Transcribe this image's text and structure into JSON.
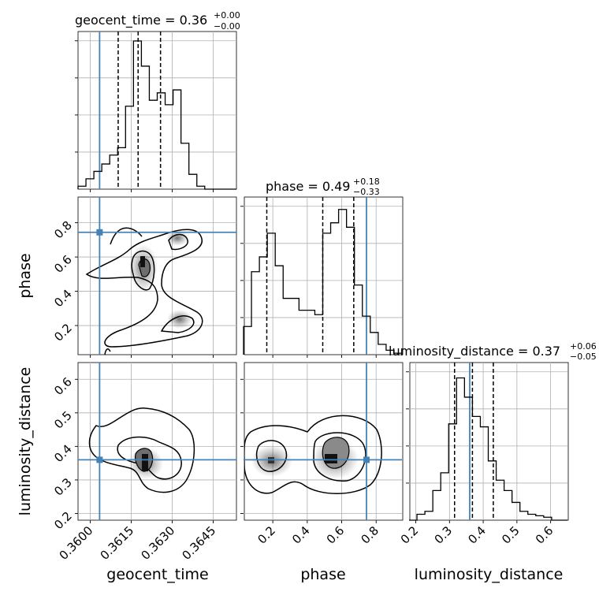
{
  "chart_data": {
    "type": "corner",
    "parameters": [
      "geocent_time",
      "phase",
      "luminosity_distance"
    ],
    "truths": {
      "geocent_time": 0.36034,
      "phase": 0.744,
      "luminosity_distance": 0.36
    },
    "ranges": {
      "geocent_time": [
        0.35955,
        0.36535
      ],
      "phase": [
        0.03,
        0.95
      ],
      "luminosity_distance": [
        0.18,
        0.65
      ]
    },
    "ticks": {
      "geocent_time": {
        "values": [
          0.36,
          0.3615,
          0.363,
          0.3645
        ],
        "labels": [
          "0.3600",
          "0.3615",
          "0.3630",
          "0.3645"
        ]
      },
      "phase": {
        "values": [
          0.2,
          0.4,
          0.6,
          0.8
        ],
        "labels": [
          "0.2",
          "0.4",
          "0.6",
          "0.8"
        ]
      },
      "luminosity_distance": {
        "values": [
          0.2,
          0.3,
          0.4,
          0.5,
          0.6
        ],
        "labels": [
          "0.2",
          "0.3",
          "0.4",
          "0.5",
          "0.6"
        ]
      }
    },
    "titles": {
      "geocent_time": {
        "name": "geocent_time",
        "median": "0.36",
        "plus": "+0.00",
        "minus": "−0.00"
      },
      "phase": {
        "name": "phase",
        "median": "0.49",
        "plus": "+0.18",
        "minus": "−0.33"
      },
      "luminosity_distance": {
        "name": "luminosity_distance",
        "median": "0.37",
        "plus": "+0.06",
        "minus": "−0.05"
      }
    },
    "quantiles": {
      "geocent_time": [
        0.36102,
        0.36175,
        0.36257
      ],
      "phase": [
        0.165,
        0.49,
        0.67
      ],
      "luminosity_distance": [
        0.315,
        0.368,
        0.43
      ]
    },
    "histograms": {
      "geocent_time": {
        "edges": [
          0.35955,
          0.35984,
          0.36013,
          0.36042,
          0.36071,
          0.361,
          0.36129,
          0.36158,
          0.36187,
          0.36216,
          0.36245,
          0.36274,
          0.36303,
          0.36332,
          0.36361,
          0.3639,
          0.36419,
          0.36448,
          0.36477,
          0.36506,
          0.36535
        ],
        "counts": [
          0.02,
          0.07,
          0.12,
          0.17,
          0.23,
          0.28,
          0.56,
          1.0,
          0.83,
          0.6,
          0.65,
          0.57,
          0.67,
          0.31,
          0.1,
          0.02,
          0.0,
          0.0,
          0.0,
          0.0
        ]
      },
      "phase": {
        "edges": [
          0.03,
          0.076,
          0.122,
          0.168,
          0.214,
          0.26,
          0.306,
          0.352,
          0.398,
          0.444,
          0.49,
          0.536,
          0.582,
          0.628,
          0.674,
          0.72,
          0.766,
          0.812,
          0.858,
          0.904,
          0.95
        ],
        "counts": [
          0.19,
          0.56,
          0.66,
          0.82,
          0.6,
          0.38,
          0.38,
          0.3,
          0.3,
          0.27,
          0.82,
          0.89,
          0.98,
          0.86,
          0.47,
          0.26,
          0.15,
          0.07,
          0.03,
          0.01
        ]
      },
      "luminosity_distance": {
        "edges": [
          0.18,
          0.2035,
          0.227,
          0.2505,
          0.274,
          0.2975,
          0.321,
          0.3445,
          0.368,
          0.3915,
          0.415,
          0.4385,
          0.462,
          0.4855,
          0.509,
          0.5325,
          0.556,
          0.5795,
          0.603,
          0.6265,
          0.65
        ],
        "counts": [
          0.0,
          0.04,
          0.06,
          0.2,
          0.32,
          0.65,
          0.96,
          0.83,
          0.7,
          0.63,
          0.4,
          0.27,
          0.2,
          0.12,
          0.06,
          0.04,
          0.03,
          0.02,
          0.0,
          0.0
        ]
      }
    }
  }
}
